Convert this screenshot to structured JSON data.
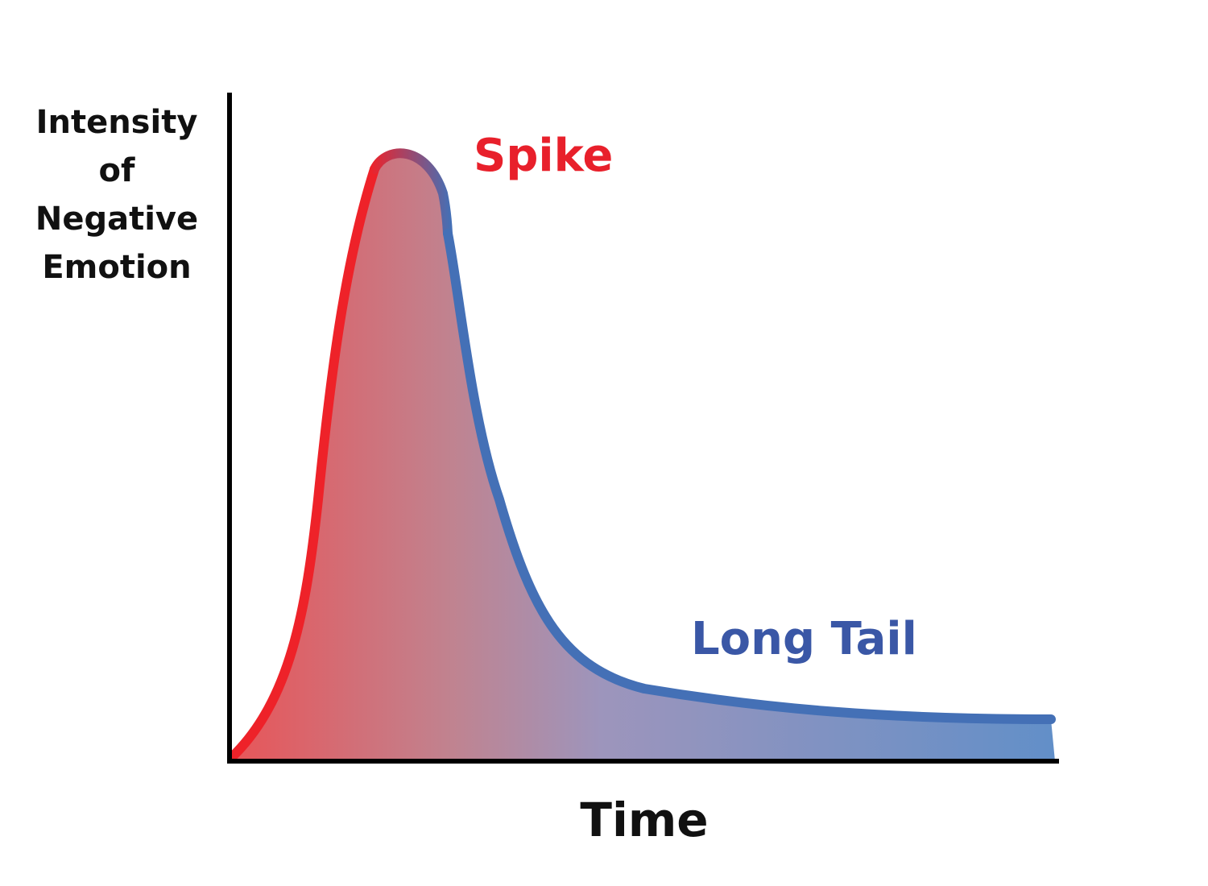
{
  "y_axis_label_lines": [
    "Intensity",
    "of",
    "Negative",
    "Emotion"
  ],
  "x_axis_label": "Time",
  "annotations": {
    "spike": "Spike",
    "long_tail": "Long Tail"
  },
  "colors": {
    "spike": "#ee2229",
    "tail": "#4470b6",
    "spike_label": "#e8202b",
    "tail_label": "#3a57a6",
    "fill_start": "#e85558",
    "fill_mid": "#9d95bc",
    "fill_end": "#628fc8",
    "axis": "#000000"
  }
}
